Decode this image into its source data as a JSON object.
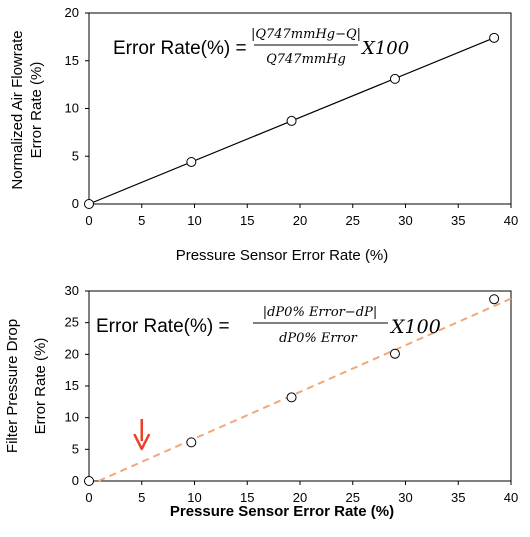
{
  "chart_data": [
    {
      "type": "line",
      "title": "",
      "xlabel": "Pressure Sensor Error Rate (%)",
      "ylabel_lines": [
        "Normalized Air Flowrate",
        "Error Rate (%)"
      ],
      "xlim": [
        0,
        40
      ],
      "ylim": [
        0,
        20
      ],
      "xticks": [
        0,
        5,
        10,
        15,
        20,
        25,
        30,
        35,
        40
      ],
      "yticks": [
        0,
        5,
        10,
        15,
        20
      ],
      "grid": false,
      "line_color": "#000000",
      "line_style": "solid",
      "x": [
        0,
        9.7,
        19.2,
        29.0,
        38.4
      ],
      "y": [
        0,
        4.4,
        8.7,
        13.1,
        17.4
      ],
      "line_fit": {
        "x": [
          0,
          38.4
        ],
        "y": [
          0,
          17.4
        ]
      },
      "annotation": {
        "prefix": "Error Rate(%) =",
        "numerator": "|Q747mmHg−Q|",
        "denominator": "Q747mmHg",
        "suffix": "X100"
      }
    },
    {
      "type": "scatter",
      "title": "",
      "xlabel": "Pressure Sensor Error Rate (%)",
      "ylabel_lines": [
        "Filter Pressure Drop",
        "Error Rate (%)"
      ],
      "xlim": [
        0,
        40
      ],
      "ylim": [
        0,
        30
      ],
      "xticks": [
        0,
        5,
        10,
        15,
        20,
        25,
        30,
        35,
        40
      ],
      "yticks": [
        0,
        5,
        10,
        15,
        20,
        25,
        30
      ],
      "grid": false,
      "line_color": "#f0a878",
      "line_style": "dashed",
      "arrow_color": "#e8412a",
      "arrow_at_x": 5,
      "x": [
        0,
        9.7,
        19.2,
        29.0,
        38.4
      ],
      "y": [
        0,
        6.1,
        13.2,
        20.1,
        28.7
      ],
      "line_fit": {
        "x": [
          0.9,
          40
        ],
        "y": [
          0,
          28.8
        ]
      },
      "annotation": {
        "prefix": "Error Rate(%) =",
        "numerator": "|dP0% Error−dP|",
        "denominator": "dP0% Error",
        "suffix": "X100"
      }
    }
  ]
}
